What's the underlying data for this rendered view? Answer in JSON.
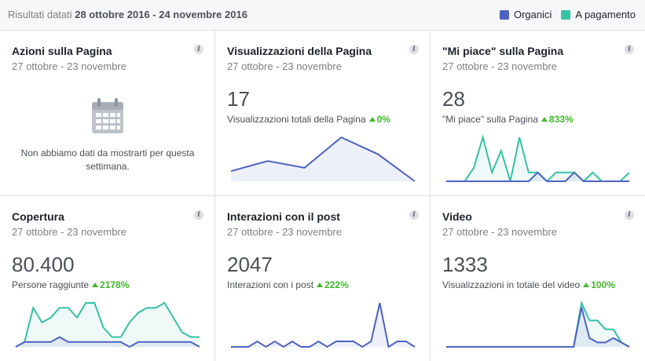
{
  "header": {
    "prefix": "Risultati datati",
    "range": "28 ottobre 2016 - 24 novembre 2016",
    "legend": [
      {
        "label": "Organici",
        "color": "#4e62c2"
      },
      {
        "label": "A pagamento",
        "color": "#36c2a4"
      }
    ]
  },
  "colors": {
    "organic": "#4e62c2",
    "paid": "#36c2a4",
    "positive": "#42b72a"
  },
  "cards": [
    {
      "title": "Azioni sulla Pagina",
      "dates": "27 ottobre - 23 novembre",
      "empty_message": "Non abbiamo dati da mostrarti per questa settimana.",
      "icon": "calendar-icon"
    },
    {
      "title": "Visualizzazioni della Pagina",
      "dates": "27 ottobre - 23 novembre",
      "value": "17",
      "sub": "Visualizzazioni totali della Pagina",
      "change": "0%",
      "organic": [
        3,
        6,
        4,
        13,
        8,
        0
      ],
      "paid": null
    },
    {
      "title": "\"Mi piace\" sulla Pagina",
      "dates": "27 ottobre - 23 novembre",
      "value": "28",
      "sub": "\"Mi piace\" sulla Pagina",
      "change": "833%",
      "organic": [
        0,
        0,
        0,
        0,
        0,
        0,
        0,
        0,
        0,
        0,
        2,
        0,
        0,
        0,
        2,
        0,
        0,
        0,
        0,
        0,
        0
      ],
      "paid": [
        0,
        0,
        0,
        3,
        10,
        2,
        7,
        0,
        10,
        2,
        2,
        0,
        2,
        2,
        2,
        0,
        2,
        0,
        0,
        0,
        2
      ]
    },
    {
      "title": "Copertura",
      "dates": "27 ottobre - 23 novembre",
      "value": "80.400",
      "sub": "Persone raggiunte",
      "change": "2178%",
      "organic": [
        0,
        1,
        1,
        1,
        1,
        2,
        1,
        1,
        1,
        1,
        1,
        1,
        1,
        0,
        1,
        1,
        1,
        1,
        1,
        1,
        1,
        0
      ],
      "paid": [
        0,
        1,
        8,
        5,
        6,
        8,
        8,
        6,
        9,
        9,
        4,
        2,
        2,
        5,
        7,
        8,
        8,
        9,
        6,
        3,
        2,
        2
      ]
    },
    {
      "title": "Interazioni con il post",
      "dates": "27 ottobre - 23 novembre",
      "value": "2047",
      "sub": "Interazioni con i post",
      "change": "222%",
      "organic": [
        0,
        0,
        0,
        1,
        0,
        1,
        0,
        1,
        0,
        0,
        1,
        0,
        1,
        1,
        1,
        0,
        1,
        8,
        0,
        1,
        1,
        0
      ],
      "paid": null
    },
    {
      "title": "Video",
      "dates": "27 ottobre - 23 novembre",
      "value": "1333",
      "sub": "Visualizzazioni in totale del video",
      "change": "100%",
      "organic": [
        0,
        0,
        0,
        0,
        0,
        0,
        0,
        0,
        0,
        0,
        0,
        0,
        0,
        0,
        0,
        0,
        0,
        9,
        2,
        1,
        1,
        2,
        1,
        0
      ],
      "paid": [
        0,
        0,
        0,
        0,
        0,
        0,
        0,
        0,
        0,
        0,
        0,
        0,
        0,
        0,
        0,
        0,
        0,
        10,
        6,
        6,
        4,
        4,
        1,
        0
      ]
    }
  ]
}
